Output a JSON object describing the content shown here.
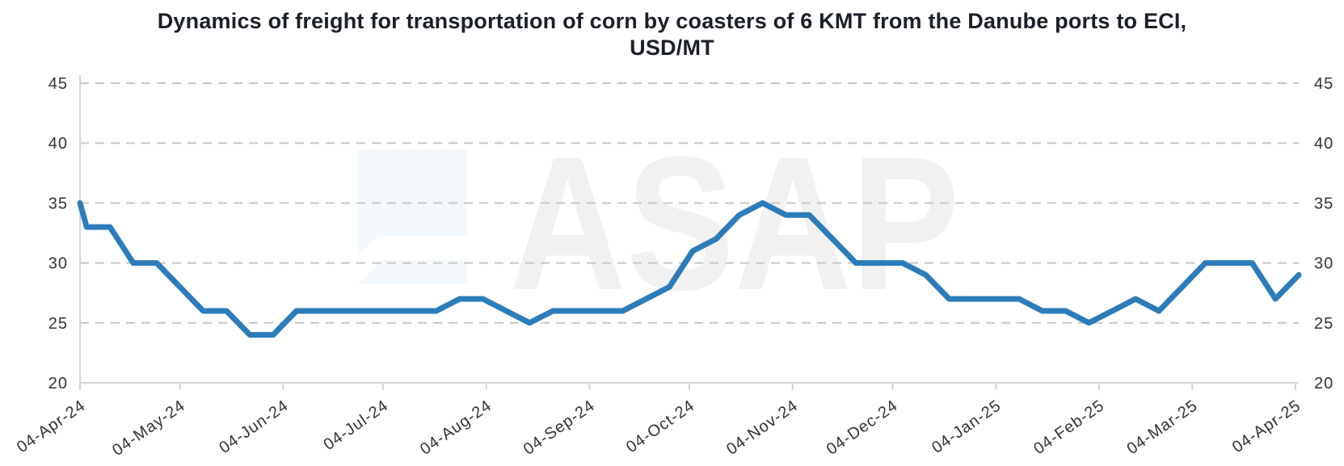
{
  "title": {
    "line1": "Dynamics of freight for transportation of corn by coasters of 6 KMT from the Danube ports to ECI,",
    "line2": "USD/MT"
  },
  "watermark": {
    "text": "ASAP"
  },
  "colors": {
    "line": "#2d7cba",
    "grid": "#c7c7c7",
    "axis": "#d4d4d4",
    "tick_label": "#333333",
    "title": "#1b1f27",
    "watermark_text": "#f1f1f2",
    "watermark_icon": "#f2f8fc"
  },
  "chart_data": {
    "type": "line",
    "title": "Dynamics of freight for transportation of corn by coasters of 6 KMT from the Danube ports to ECI, USD/MT",
    "x_axis": {
      "tick_labels": [
        "04-Apr-24",
        "04-May-24",
        "04-Jun-24",
        "04-Jul-24",
        "04-Aug-24",
        "04-Sep-24",
        "04-Oct-24",
        "04-Nov-24",
        "04-Dec-24",
        "04-Jan-25",
        "04-Feb-25",
        "04-Mar-25",
        "04-Apr-25"
      ],
      "tick_day_offsets": [
        0,
        30,
        61,
        91,
        122,
        153,
        183,
        214,
        244,
        275,
        306,
        334,
        365
      ],
      "domain_days": [
        0,
        366
      ]
    },
    "y_axis": {
      "min": 20,
      "max": 45,
      "step": 5,
      "tick_labels": [
        "20",
        "25",
        "30",
        "35",
        "40",
        "45"
      ],
      "labels_on_both_sides": true,
      "grid": "dashed"
    },
    "series": [
      {
        "x_day_offsets": [
          0,
          2,
          9,
          16,
          23,
          30,
          37,
          44,
          51,
          58,
          65,
          72,
          79,
          86,
          93,
          100,
          107,
          114,
          121,
          128,
          135,
          142,
          149,
          156,
          163,
          170,
          177,
          184,
          191,
          198,
          205,
          212,
          219,
          226,
          233,
          240,
          247,
          254,
          261,
          268,
          275,
          282,
          289,
          296,
          303,
          310,
          317,
          324,
          331,
          338,
          345,
          352,
          359,
          366
        ],
        "values": [
          35,
          33,
          33,
          30,
          30,
          28,
          26,
          26,
          24,
          24,
          26,
          26,
          26,
          26,
          26,
          26,
          26,
          27,
          27,
          26,
          25,
          26,
          26,
          26,
          26,
          27,
          28,
          31,
          32,
          34,
          35,
          34,
          34,
          32,
          30,
          30,
          30,
          29,
          27,
          27,
          27,
          27,
          26,
          26,
          25,
          26,
          27,
          26,
          28,
          30,
          30,
          30,
          27,
          29
        ]
      }
    ]
  }
}
